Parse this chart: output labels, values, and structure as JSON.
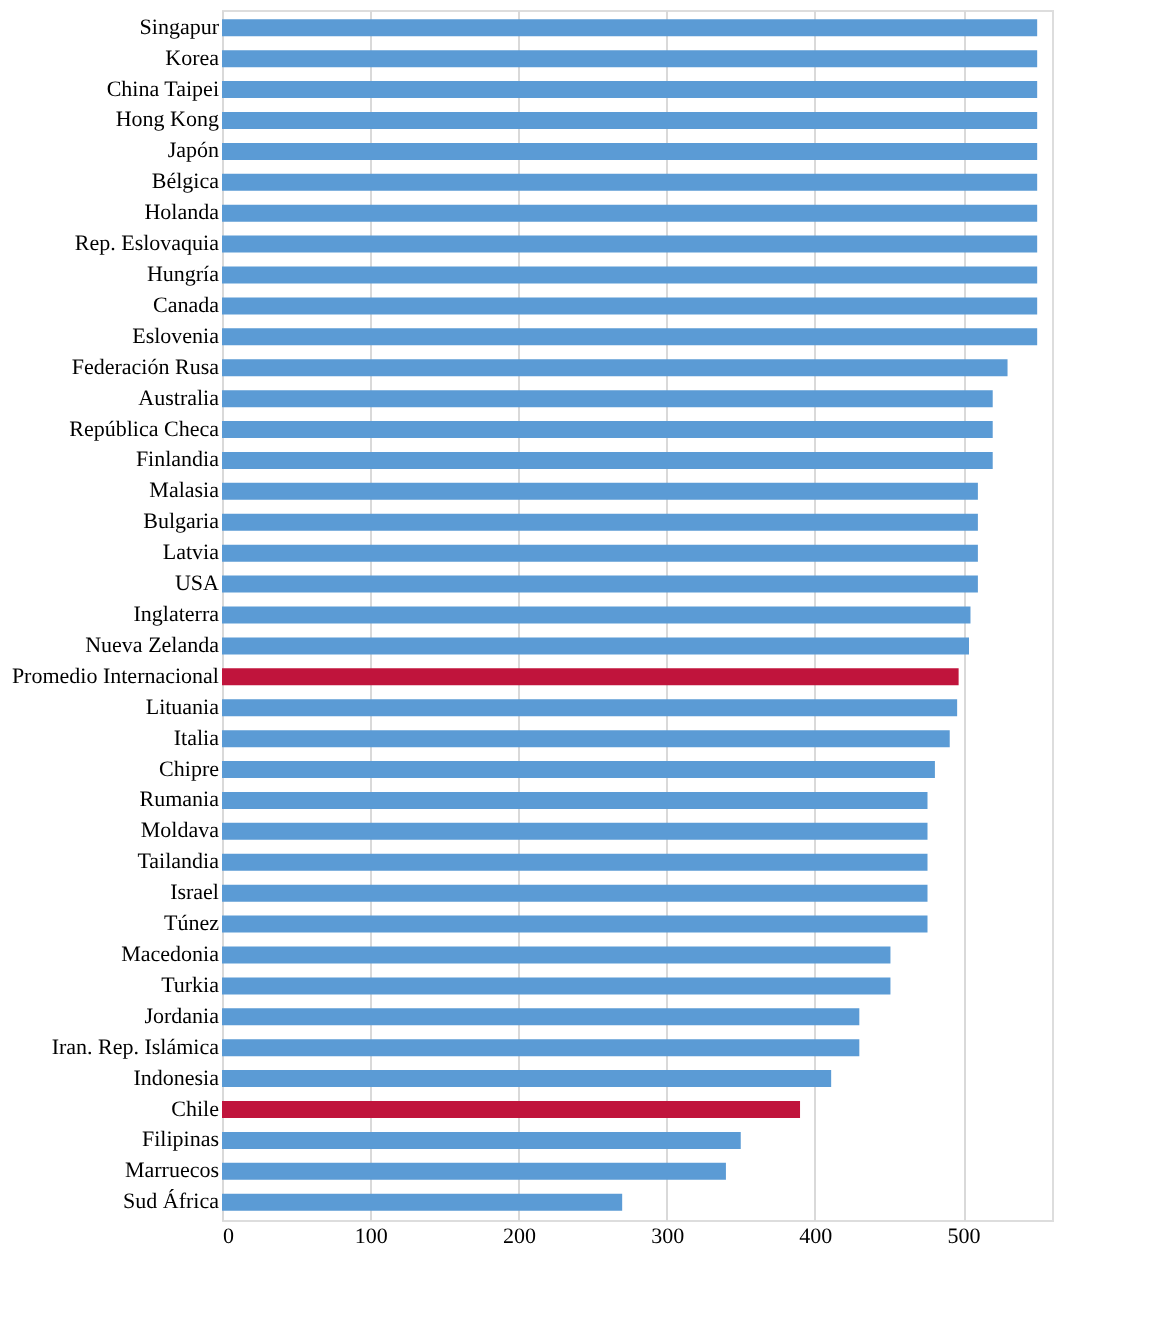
{
  "chart_data": {
    "type": "bar",
    "orientation": "horizontal",
    "categories": [
      "Singapur",
      "Korea",
      "China Taipei",
      "Hong Kong",
      "Japón",
      "Bélgica",
      "Holanda",
      "Rep. Eslovaquia",
      "Hungría",
      "Canada",
      "Eslovenia",
      "Federación Rusa",
      "Australia",
      "República Checa",
      "Finlandia",
      "Malasia",
      "Bulgaria",
      "Latvia",
      "USA",
      "Inglaterra",
      "Nueva Zelanda",
      "Promedio Internacional",
      "Lituania",
      "Italia",
      "Chipre",
      "Rumania",
      "Moldava",
      "Tailandia",
      "Israel",
      "Túnez",
      "Macedonia",
      "Turkia",
      "Jordania",
      "Iran. Rep. Islámica",
      "Indonesia",
      "Chile",
      "Filipinas",
      "Marruecos",
      "Sud África"
    ],
    "values": [
      550,
      550,
      550,
      550,
      550,
      550,
      550,
      550,
      550,
      550,
      550,
      530,
      520,
      520,
      520,
      510,
      510,
      510,
      510,
      505,
      504,
      497,
      496,
      491,
      481,
      476,
      476,
      476,
      476,
      476,
      451,
      451,
      430,
      430,
      411,
      390,
      350,
      340,
      270
    ],
    "colors": [
      "#5b9bd5",
      "#5b9bd5",
      "#5b9bd5",
      "#5b9bd5",
      "#5b9bd5",
      "#5b9bd5",
      "#5b9bd5",
      "#5b9bd5",
      "#5b9bd5",
      "#5b9bd5",
      "#5b9bd5",
      "#5b9bd5",
      "#5b9bd5",
      "#5b9bd5",
      "#5b9bd5",
      "#5b9bd5",
      "#5b9bd5",
      "#5b9bd5",
      "#5b9bd5",
      "#5b9bd5",
      "#5b9bd5",
      "#c0143c",
      "#5b9bd5",
      "#5b9bd5",
      "#5b9bd5",
      "#5b9bd5",
      "#5b9bd5",
      "#5b9bd5",
      "#5b9bd5",
      "#5b9bd5",
      "#5b9bd5",
      "#5b9bd5",
      "#5b9bd5",
      "#5b9bd5",
      "#5b9bd5",
      "#c0143c",
      "#5b9bd5",
      "#5b9bd5",
      "#5b9bd5"
    ],
    "xlim": [
      0,
      560
    ],
    "xticks": [
      0,
      100,
      200,
      300,
      400,
      500
    ],
    "grid": "x"
  }
}
